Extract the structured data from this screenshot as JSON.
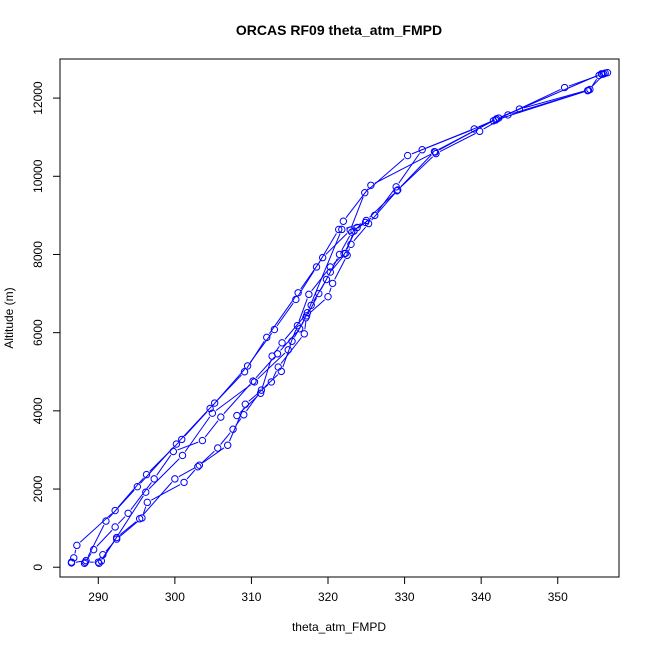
{
  "chart_data": {
    "type": "scatter",
    "title": "ORCAS RF09 theta_atm_FMPD",
    "xlabel": "theta_atm_FMPD",
    "ylabel": "Altitude (m)",
    "xlim": [
      285,
      358
    ],
    "ylim": [
      -250,
      13000
    ],
    "x_ticks": [
      290,
      300,
      310,
      320,
      330,
      340,
      350
    ],
    "y_ticks": [
      0,
      2000,
      4000,
      6000,
      8000,
      10000,
      12000
    ],
    "x_tick_labels": [
      "290",
      "300",
      "310",
      "320",
      "330",
      "340",
      "350"
    ],
    "y_tick_labels": [
      "0",
      "2000",
      "4000",
      "6000",
      "8000",
      "10000",
      "12000"
    ],
    "grid": false,
    "colors": {
      "series": "#0000ff",
      "axis": "#000000"
    },
    "series": [
      {
        "line": true,
        "points": [
          [
            356.5,
            12650
          ],
          [
            356.0,
            12620
          ],
          [
            355.4,
            12580
          ],
          [
            354.2,
            12220
          ],
          [
            345.0,
            11720
          ],
          [
            342.0,
            11470
          ],
          [
            334.0,
            10620
          ],
          [
            325.6,
            9770
          ],
          [
            322.0,
            8850
          ],
          [
            321.4,
            8640
          ],
          [
            318.5,
            7680
          ],
          [
            315.8,
            6850
          ],
          [
            313.0,
            6080
          ],
          [
            309.5,
            5150
          ],
          [
            304.6,
            4060
          ],
          [
            300.9,
            3270
          ],
          [
            296.3,
            2370
          ],
          [
            292.2,
            1450
          ],
          [
            287.2,
            560
          ],
          [
            286.8,
            240
          ],
          [
            286.5,
            130
          ]
        ]
      },
      {
        "line": true,
        "points": [
          [
            286.5,
            110
          ],
          [
            288.4,
            170
          ],
          [
            291.0,
            1180
          ],
          [
            295.1,
            2060
          ],
          [
            300.2,
            3150
          ],
          [
            305.2,
            4200
          ],
          [
            309.1,
            5000
          ],
          [
            312.0,
            5880
          ],
          [
            316.1,
            7020
          ],
          [
            319.3,
            7920
          ],
          [
            322.9,
            8620
          ],
          [
            324.8,
            9580
          ],
          [
            330.4,
            10530
          ],
          [
            341.9,
            11440
          ],
          [
            350.9,
            12270
          ],
          [
            355.8,
            12610
          ]
        ]
      },
      {
        "line": true,
        "points": [
          [
            356.2,
            12640
          ],
          [
            354.0,
            12200
          ],
          [
            343.5,
            11570
          ],
          [
            339.8,
            11150
          ],
          [
            334.1,
            10580
          ],
          [
            329.0,
            9630
          ],
          [
            325.0,
            8870
          ],
          [
            323.1,
            8570
          ],
          [
            321.5,
            8000
          ],
          [
            319.8,
            7360
          ],
          [
            317.8,
            6700
          ],
          [
            316.3,
            6100
          ],
          [
            313.4,
            5460
          ],
          [
            310.2,
            4760
          ],
          [
            306.0,
            3840
          ],
          [
            303.6,
            3240
          ],
          [
            299.8,
            2960
          ],
          [
            297.3,
            2260
          ],
          [
            293.9,
            1380
          ],
          [
            292.2,
            1030
          ],
          [
            289.4,
            450
          ],
          [
            288.2,
            100
          ]
        ]
      },
      {
        "line": true,
        "points": [
          [
            288.3,
            130
          ],
          [
            290.0,
            130
          ],
          [
            290.6,
            320
          ],
          [
            292.4,
            720
          ],
          [
            295.7,
            1260
          ],
          [
            296.4,
            1660
          ],
          [
            301.2,
            2170
          ],
          [
            303.0,
            2570
          ],
          [
            305.6,
            3050
          ],
          [
            307.6,
            3530
          ],
          [
            309.0,
            3900
          ],
          [
            311.3,
            4530
          ],
          [
            313.9,
            5010
          ],
          [
            315.3,
            5780
          ],
          [
            317.1,
            6380
          ],
          [
            318.8,
            7000
          ],
          [
            320.3,
            7550
          ],
          [
            322.3,
            8030
          ],
          [
            323.4,
            8600
          ],
          [
            326.1,
            9000
          ],
          [
            328.9,
            9730
          ],
          [
            332.3,
            10680
          ],
          [
            339.1,
            11210
          ],
          [
            342.3,
            11490
          ],
          [
            355.7,
            12620
          ]
        ]
      },
      {
        "line": true,
        "points": [
          [
            290.1,
            100
          ],
          [
            292.4,
            760
          ],
          [
            295.4,
            1240
          ],
          [
            300.0,
            2260
          ],
          [
            303.2,
            2610
          ],
          [
            306.9,
            3120
          ],
          [
            309.2,
            4170
          ],
          [
            312.6,
            4740
          ],
          [
            313.5,
            5120
          ],
          [
            316.9,
            5970
          ],
          [
            317.2,
            6430
          ],
          [
            320.0,
            6920
          ],
          [
            320.6,
            7260
          ],
          [
            322.5,
            7980
          ],
          [
            323.0,
            8260
          ],
          [
            325.3,
            8790
          ],
          [
            329.1,
            9650
          ],
          [
            333.9,
            10630
          ],
          [
            341.6,
            11420
          ],
          [
            353.9,
            12190
          ]
        ]
      },
      {
        "line": true,
        "points": [
          [
            290.4,
            160
          ],
          [
            296.2,
            1920
          ],
          [
            301.0,
            2860
          ],
          [
            304.9,
            3940
          ],
          [
            310.4,
            4740
          ],
          [
            314.8,
            5560
          ],
          [
            316.0,
            6180
          ],
          [
            317.5,
            6980
          ],
          [
            320.3,
            7680
          ],
          [
            322.1,
            8020
          ],
          [
            323.8,
            8690
          ],
          [
            324.9,
            8820
          ],
          [
            321.8,
            8640
          ],
          [
            317.3,
            6510
          ],
          [
            314.0,
            5740
          ],
          [
            312.7,
            5400
          ],
          [
            311.2,
            4450
          ],
          [
            308.1,
            3880
          ]
        ]
      }
    ]
  }
}
